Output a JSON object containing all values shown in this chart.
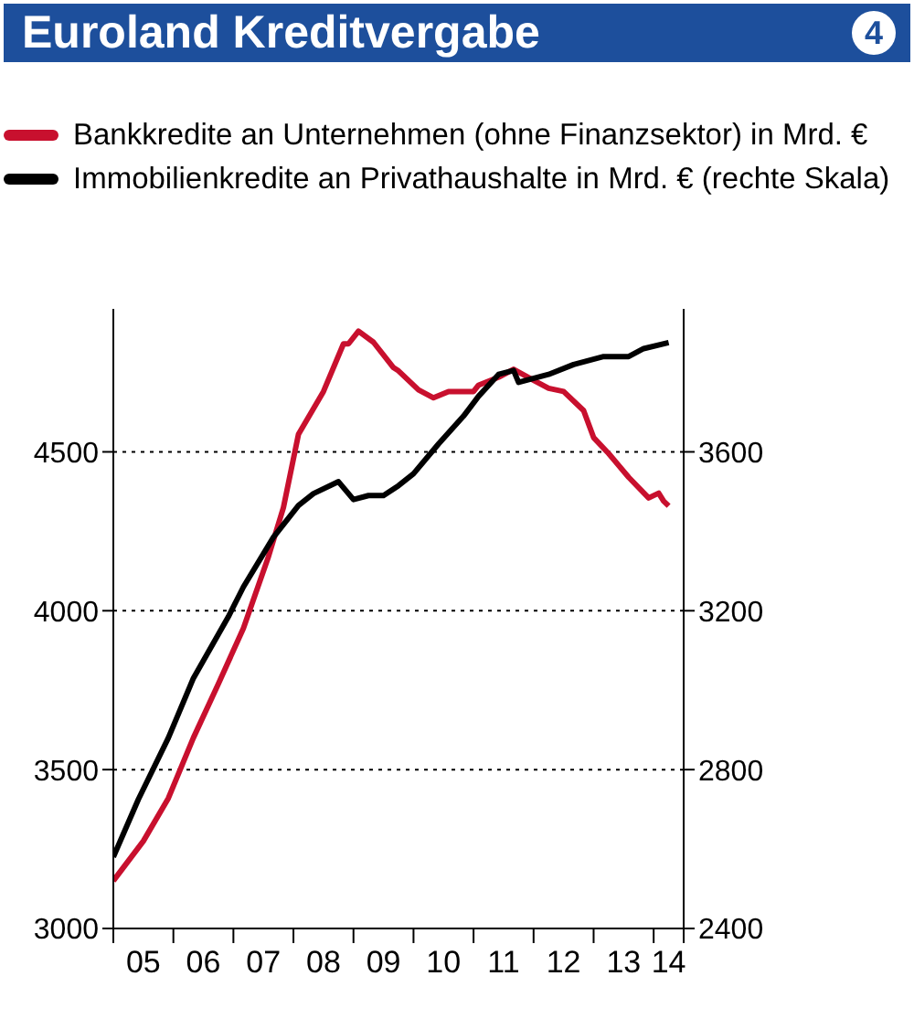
{
  "chart_data": {
    "type": "line",
    "title": "Euroland Kreditvergabe",
    "annotations": [
      "4"
    ],
    "legend": "top",
    "grid": "y",
    "line_style": "solid",
    "marker": "none",
    "xlim": [
      "2005-01",
      "2014-07"
    ],
    "xticks": [
      {
        "value": "2005-01",
        "label": null
      },
      {
        "value": "2005-07",
        "label": "05"
      },
      {
        "value": "2006-01",
        "label": null
      },
      {
        "value": "2006-07",
        "label": "06"
      },
      {
        "value": "2007-01",
        "label": null
      },
      {
        "value": "2007-07",
        "label": "07"
      },
      {
        "value": "2008-01",
        "label": null
      },
      {
        "value": "2008-07",
        "label": "08"
      },
      {
        "value": "2009-01",
        "label": null
      },
      {
        "value": "2009-07",
        "label": "09"
      },
      {
        "value": "2010-01",
        "label": null
      },
      {
        "value": "2010-07",
        "label": "10"
      },
      {
        "value": "2011-01",
        "label": null
      },
      {
        "value": "2011-07",
        "label": "11"
      },
      {
        "value": "2012-01",
        "label": null
      },
      {
        "value": "2012-07",
        "label": "12"
      },
      {
        "value": "2013-01",
        "label": null
      },
      {
        "value": "2013-07",
        "label": "13"
      },
      {
        "value": "2014-01",
        "label": null
      },
      {
        "value": "2014-04",
        "label": "14"
      },
      {
        "value": "2014-07",
        "label": null
      }
    ],
    "ylim": [
      3000,
      4950
    ],
    "yticks": [
      3000,
      3500,
      4000,
      4500
    ],
    "y2lim": [
      2400,
      3960
    ],
    "y2ticks": [
      2400,
      2800,
      3200,
      3600
    ],
    "series": [
      {
        "name": "Bankkredite an Unternehmen (ohne Finanzsektor) in Mrd. €",
        "color": "#c8102e",
        "x": [
          "2005-01",
          "2005-07",
          "2005-12",
          "2006-05",
          "2006-10",
          "2007-03",
          "2007-08",
          "2007-11",
          "2008-02",
          "2008-07",
          "2008-11",
          "2008-12",
          "2009-02",
          "2009-05",
          "2009-09",
          "2009-10",
          "2010-02",
          "2010-05",
          "2010-08",
          "2011-01",
          "2011-02",
          "2011-06",
          "2011-09",
          "2012-01",
          "2012-04",
          "2012-07",
          "2012-11",
          "2013-01",
          "2013-04",
          "2013-08",
          "2013-12",
          "2014-02",
          "2014-03",
          "2014-04"
        ],
        "values": [
          3150,
          3275,
          3410,
          3600,
          3770,
          3945,
          4170,
          4325,
          4555,
          4690,
          4840,
          4840,
          4880,
          4845,
          4765,
          4755,
          4695,
          4670,
          4690,
          4690,
          4710,
          4735,
          4760,
          4725,
          4700,
          4690,
          4630,
          4545,
          4495,
          4420,
          4355,
          4370,
          4345,
          4330
        ]
      },
      {
        "name": "Immobilienkredite an Privathaushalte in Mrd. € (rechte Skala)",
        "color": "#000000",
        "axis": "y2",
        "x": [
          "2005-01",
          "2005-06",
          "2005-12",
          "2006-05",
          "2006-12",
          "2007-03",
          "2007-09",
          "2008-02",
          "2008-05",
          "2008-10",
          "2009-01",
          "2009-04",
          "2009-07",
          "2009-10",
          "2010-01",
          "2010-06",
          "2010-11",
          "2011-02",
          "2011-06",
          "2011-09",
          "2011-10",
          "2012-04",
          "2012-09",
          "2013-03",
          "2013-08",
          "2013-11",
          "2014-04"
        ],
        "values": [
          2580,
          2725,
          2880,
          3030,
          3185,
          3260,
          3385,
          3465,
          3495,
          3525,
          3480,
          3490,
          3490,
          3515,
          3545,
          3620,
          3690,
          3740,
          3795,
          3805,
          3775,
          3795,
          3820,
          3840,
          3840,
          3860,
          3875
        ]
      }
    ]
  }
}
